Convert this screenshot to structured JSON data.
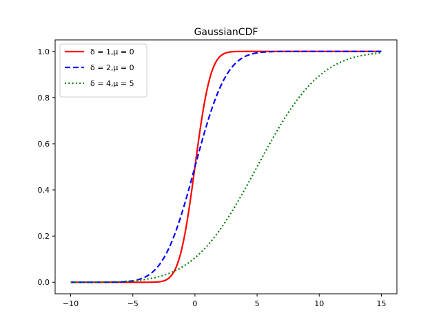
{
  "chart_data": {
    "type": "line",
    "title": "GaussianCDF",
    "xlabel": "",
    "ylabel": "",
    "xlim": [
      -11.25,
      16.25
    ],
    "ylim": [
      -0.05,
      1.05
    ],
    "xticks": [
      -10,
      -5,
      0,
      5,
      10,
      15
    ],
    "xtick_labels": [
      "−10",
      "−5",
      "0",
      "5",
      "10",
      "15"
    ],
    "yticks": [
      0.0,
      0.2,
      0.4,
      0.6,
      0.8,
      1.0
    ],
    "ytick_labels": [
      "0.0",
      "0.2",
      "0.4",
      "0.6",
      "0.8",
      "1.0"
    ],
    "grid": false,
    "legend_position": "top-left",
    "x_range": [
      -10,
      15
    ],
    "series": [
      {
        "name": "δ = 1,μ = 0",
        "sigma": 1,
        "mu": 0,
        "color": "#ff0000",
        "style": "solid"
      },
      {
        "name": "δ = 2,μ = 0",
        "sigma": 2,
        "mu": 0,
        "color": "#0000ff",
        "style": "dashed"
      },
      {
        "name": "δ = 4,μ = 5",
        "sigma": 4,
        "mu": 5,
        "color": "#008000",
        "style": "dotted"
      }
    ]
  }
}
